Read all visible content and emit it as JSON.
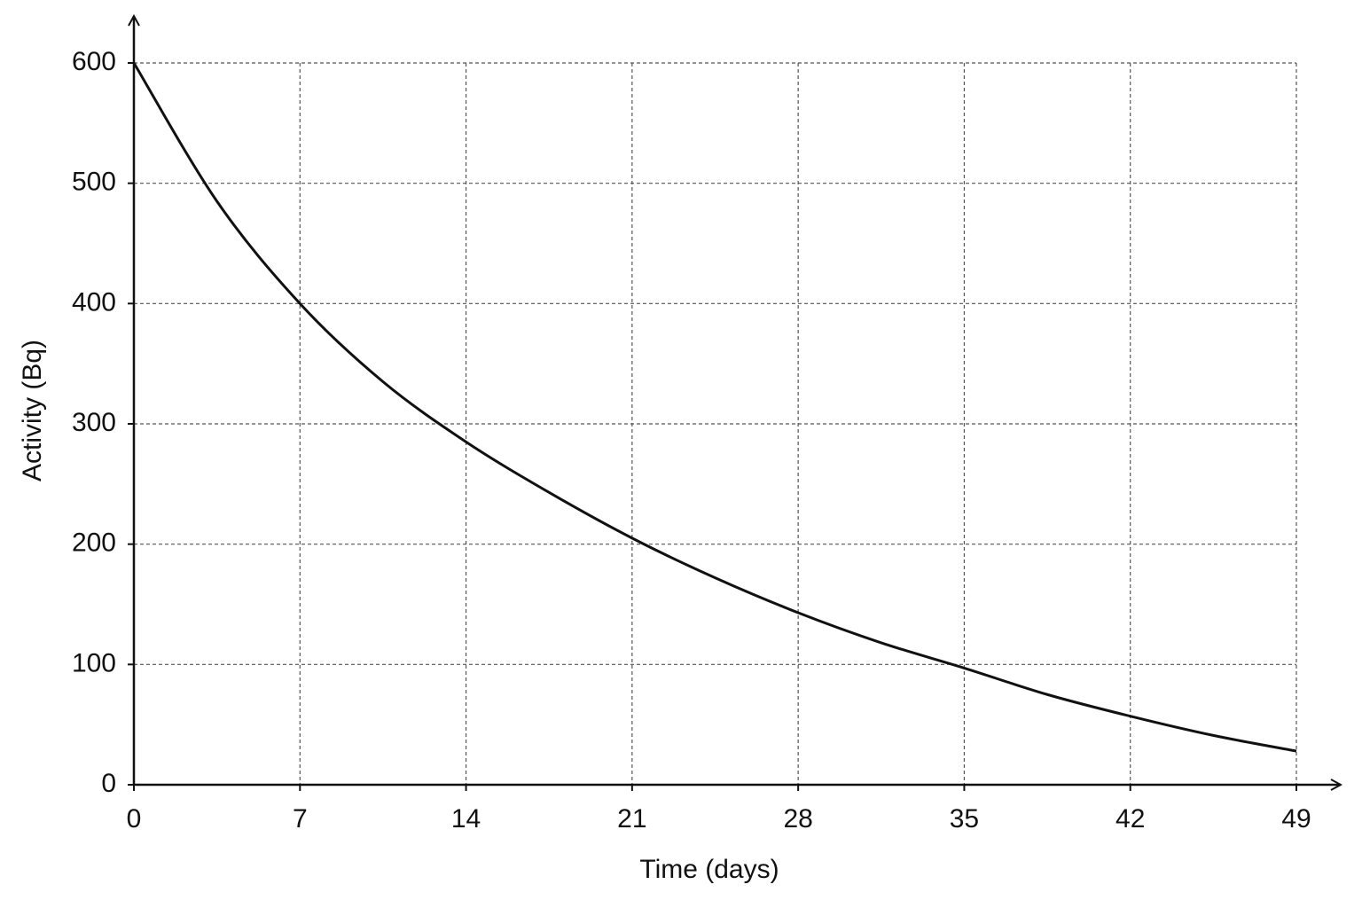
{
  "chart_data": {
    "type": "line",
    "x_label": "Time (days)",
    "y_label": "Activity (Bq)",
    "x": [
      0,
      3.5,
      7,
      10.5,
      14,
      17.5,
      21,
      24.5,
      28,
      31.5,
      35,
      38.5,
      42,
      45.5,
      49
    ],
    "series": [
      {
        "color": "#111111",
        "values": [
          600,
          485,
          400,
          335,
          285,
          243,
          205,
          172,
          143,
          118,
          97,
          75,
          57,
          41,
          28
        ]
      }
    ],
    "xlim": [
      0,
      49
    ],
    "xticks": [
      0,
      7,
      14,
      21,
      28,
      35,
      42,
      49
    ],
    "ylim": [
      0,
      600
    ],
    "yticks": [
      0,
      100,
      200,
      300,
      400,
      500,
      600
    ],
    "grid": true
  }
}
